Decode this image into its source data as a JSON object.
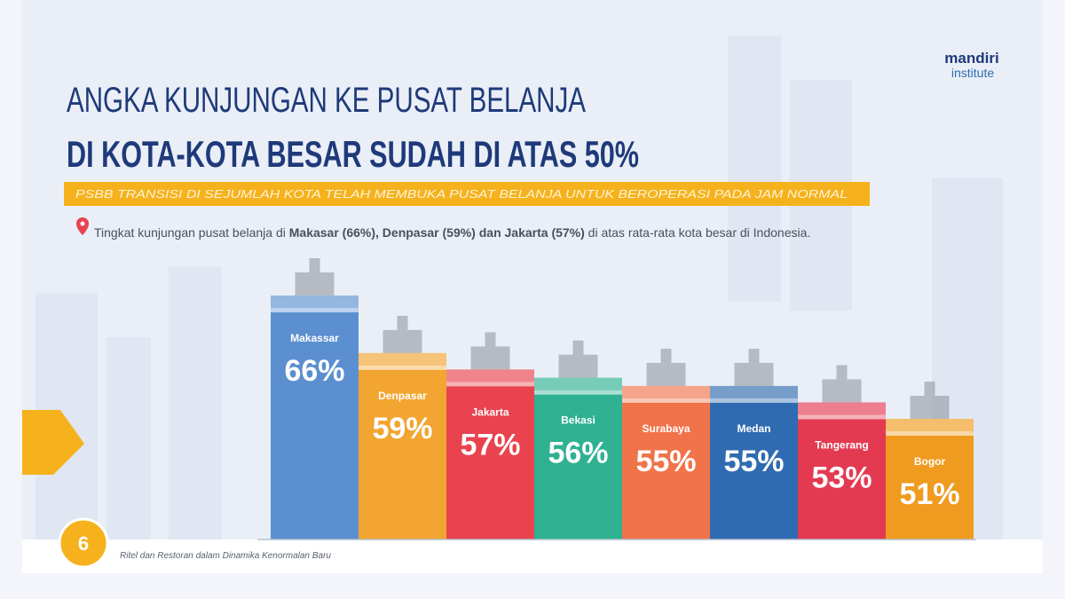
{
  "chart_data": {
    "type": "bar",
    "title_lines": [
      "ANGKA KUNJUNGAN KE PUSAT BELANJA",
      "DI KOTA-KOTA BESAR SUDAH DI ATAS 50%"
    ],
    "subtitle": "PSBB TRANSISI DI SEJUMLAH KOTA TELAH MEMBUKA PUSAT BELANJA UNTUK BEROPERASI PADA JAM NORMAL",
    "note": [
      "Tingkat kunjungan pusat belanja di ",
      "Makasar (66%), Denpasar (59%) dan Jakarta (57%)",
      " di atas rata-rata kota besar di Indonesia."
    ],
    "categories": [
      "Makassar",
      "Denpasar",
      "Jakarta",
      "Bekasi",
      "Surabaya",
      "Medan",
      "Tangerang",
      "Bogor"
    ],
    "values": [
      66,
      59,
      57,
      56,
      55,
      55,
      53,
      51
    ],
    "value_labels": [
      "66%",
      "59%",
      "57%",
      "56%",
      "55%",
      "55%",
      "53%",
      "51%"
    ],
    "colors": [
      "#5b8fd0",
      "#f2a530",
      "#e8434f",
      "#2fb192",
      "#f0734a",
      "#2f6bb0",
      "#e33a52",
      "#ee9b20"
    ],
    "logo": [
      "mandiri",
      "institute"
    ],
    "page_number": "6",
    "footer": "Ritel dan Restoran dalam Dinamika Kenormalan Baru"
  }
}
